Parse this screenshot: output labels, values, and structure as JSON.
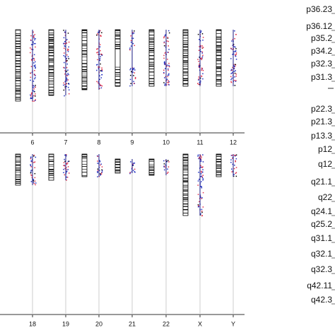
{
  "top_row": {
    "labels": [
      "6",
      "7",
      "8",
      "9",
      "10",
      "11",
      "12"
    ]
  },
  "bottom_row": {
    "labels": [
      "18",
      "19",
      "20",
      "21",
      "22",
      "X",
      "Y"
    ]
  },
  "bands": [
    "p36.23",
    "p36.12",
    "p35.2",
    "p34.2",
    "p32.3",
    "p31.3",
    "p22.3",
    "p21.3",
    "p13.3",
    "p12",
    "q12",
    "q21.1",
    "q22",
    "q24.1",
    "q25.2",
    "q31.1",
    "q32.1",
    "q32.3",
    "q42.11",
    "q42.3"
  ]
}
